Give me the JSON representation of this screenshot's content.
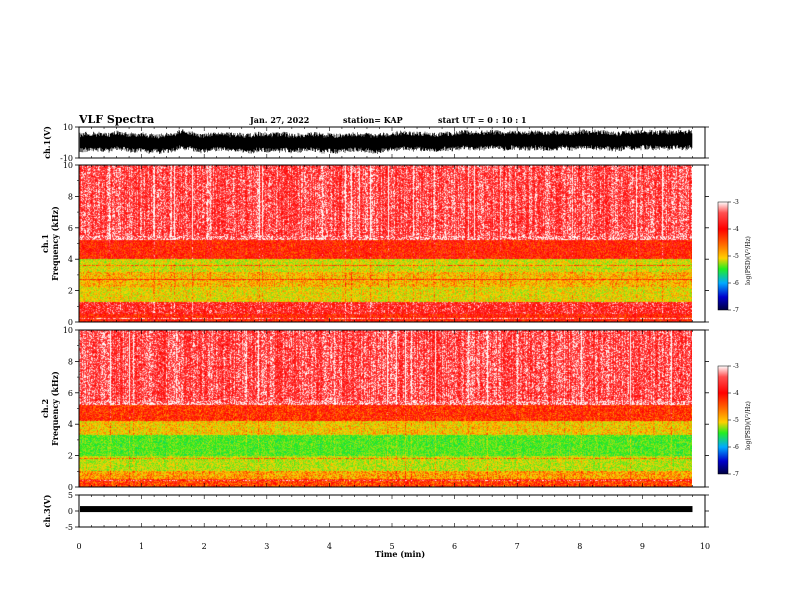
{
  "header": {
    "title": "VLF Spectra",
    "date": "Jan. 27, 2022",
    "station": "station= KAP",
    "start": "start  UT =   0  : 10 : 1"
  },
  "colorbar": {
    "label": "log(PSD)(V²/Hz)",
    "ticks": [
      "-3",
      "-4",
      "-5",
      "-6",
      "-7"
    ],
    "colors": [
      "#ff0000",
      "#ff4000",
      "#ffcc00",
      "#22ee22",
      "#00aaff",
      "#0000cc",
      "#000060"
    ]
  },
  "chart_data": [
    {
      "type": "line",
      "name": "ch1-waveform",
      "ylabel": "ch.1(V)",
      "ylim": [
        -10,
        10
      ],
      "yticks": [
        "10",
        "-10"
      ],
      "xlim": [
        0,
        10
      ],
      "description_values": "dense oscillating voltage trace between about -6 and 7 V over 0-9.8 min"
    },
    {
      "type": "heatmap",
      "name": "ch1-spectrogram",
      "ylabel": "ch.1\nFrequency (kHz)",
      "ylabel_line1": "ch.1",
      "ylabel_line2": "Frequency (kHz)",
      "ylim": [
        0,
        10
      ],
      "yticks": [
        "0",
        "2",
        "4",
        "6",
        "8",
        "10"
      ],
      "xlim": [
        0,
        10
      ],
      "data_end_min": 9.8,
      "bands": [
        {
          "from_khz": 0.0,
          "to_khz": 0.5,
          "log_psd": -3.6
        },
        {
          "from_khz": 0.5,
          "to_khz": 1.3,
          "log_psd": -3.3
        },
        {
          "from_khz": 1.3,
          "to_khz": 2.2,
          "log_psd": -4.5
        },
        {
          "from_khz": 2.2,
          "to_khz": 3.2,
          "log_psd": -4.3
        },
        {
          "from_khz": 3.2,
          "to_khz": 4.0,
          "log_psd": -4.6
        },
        {
          "from_khz": 4.0,
          "to_khz": 5.2,
          "log_psd": -3.6
        },
        {
          "from_khz": 5.2,
          "to_khz": 10.0,
          "log_psd": -3.0
        }
      ]
    },
    {
      "type": "heatmap",
      "name": "ch2-spectrogram",
      "ylabel_line1": "ch.2",
      "ylabel_line2": "Frequency (kHz)",
      "ylim": [
        0,
        10
      ],
      "yticks": [
        "0",
        "2",
        "4",
        "6",
        "8",
        "10"
      ],
      "xlim": [
        0,
        10
      ],
      "data_end_min": 9.8,
      "bands": [
        {
          "from_khz": 0.0,
          "to_khz": 0.5,
          "log_psd": -3.8
        },
        {
          "from_khz": 0.5,
          "to_khz": 1.0,
          "log_psd": -4.2
        },
        {
          "from_khz": 1.0,
          "to_khz": 2.0,
          "log_psd": -4.7
        },
        {
          "from_khz": 2.0,
          "to_khz": 3.3,
          "log_psd": -5.1
        },
        {
          "from_khz": 3.3,
          "to_khz": 4.2,
          "log_psd": -4.4
        },
        {
          "from_khz": 4.2,
          "to_khz": 5.2,
          "log_psd": -3.7
        },
        {
          "from_khz": 5.2,
          "to_khz": 10.0,
          "log_psd": -3.0
        }
      ]
    },
    {
      "type": "line",
      "name": "ch3-waveform",
      "ylabel": "ch.3(V)",
      "ylim": [
        -5,
        5
      ],
      "yticks": [
        "5",
        "0",
        "-5"
      ],
      "xlim": [
        0,
        10
      ],
      "level_v": 0.6
    }
  ],
  "xaxis": {
    "label": "Time (min)",
    "ticks": [
      "0",
      "1",
      "2",
      "3",
      "4",
      "5",
      "6",
      "7",
      "8",
      "9",
      "10"
    ]
  }
}
